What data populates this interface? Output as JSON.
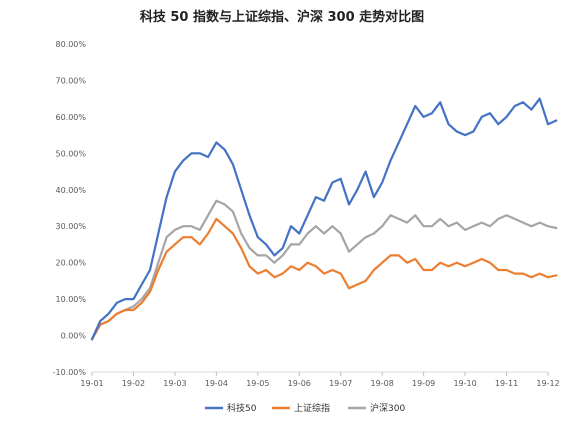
{
  "chart_data": {
    "type": "line",
    "title": "科技 50 指数与上证综指、沪深 300 走势对比图",
    "xlabel": "",
    "ylabel": "",
    "x_ticks": [
      "19-01",
      "19-02",
      "19-03",
      "19-04",
      "19-05",
      "19-06",
      "19-07",
      "19-08",
      "19-09",
      "19-10",
      "19-11",
      "19-12"
    ],
    "y_ticks": [
      "80.00%",
      "70.00%",
      "60.00%",
      "50.00%",
      "40.00%",
      "30.00%",
      "20.00%",
      "10.00%",
      "0.00%",
      "-10.00%"
    ],
    "ylim": [
      -10,
      80
    ],
    "grid": false,
    "legend_position": "bottom",
    "x": [
      0,
      0.2,
      0.4,
      0.6,
      0.8,
      1,
      1.2,
      1.4,
      1.6,
      1.8,
      2,
      2.2,
      2.4,
      2.6,
      2.8,
      3,
      3.2,
      3.4,
      3.6,
      3.8,
      4,
      4.2,
      4.4,
      4.6,
      4.8,
      5,
      5.2,
      5.4,
      5.6,
      5.8,
      6,
      6.2,
      6.4,
      6.6,
      6.8,
      7,
      7.2,
      7.4,
      7.6,
      7.8,
      8,
      8.2,
      8.4,
      8.6,
      8.8,
      9,
      9.2,
      9.4,
      9.6,
      9.8,
      10,
      10.2,
      10.4,
      10.6,
      10.8,
      11,
      11.2
    ],
    "series": [
      {
        "name": "科技50",
        "color": "#4472C4",
        "values": [
          -1,
          4,
          6,
          9,
          10,
          10,
          14,
          18,
          28,
          38,
          45,
          48,
          50,
          50,
          49,
          53,
          51,
          47,
          40,
          33,
          27,
          25,
          22,
          24,
          30,
          28,
          33,
          38,
          37,
          42,
          43,
          36,
          40,
          45,
          38,
          42,
          48,
          53,
          58,
          63,
          60,
          61,
          64,
          58,
          56,
          55,
          56,
          60,
          61,
          58,
          60,
          63,
          64,
          62,
          65,
          58,
          59
        ]
      },
      {
        "name": "上证综指",
        "color": "#ED7D31",
        "values": [
          -1,
          3,
          4,
          6,
          7,
          7,
          9,
          12,
          18,
          23,
          25,
          27,
          27,
          25,
          28,
          32,
          30,
          28,
          24,
          19,
          17,
          18,
          16,
          17,
          19,
          18,
          20,
          19,
          17,
          18,
          17,
          13,
          14,
          15,
          18,
          20,
          22,
          22,
          20,
          21,
          18,
          18,
          20,
          19,
          20,
          19,
          20,
          21,
          20,
          18,
          18,
          17,
          17,
          16,
          17,
          16,
          16.5
        ]
      },
      {
        "name": "沪深300",
        "color": "#A5A5A5",
        "values": [
          -1,
          3,
          4,
          6,
          7,
          8,
          10,
          13,
          20,
          27,
          29,
          30,
          30,
          29,
          33,
          37,
          36,
          34,
          28,
          24,
          22,
          22,
          20,
          22,
          25,
          25,
          28,
          30,
          28,
          30,
          28,
          23,
          25,
          27,
          28,
          30,
          33,
          32,
          31,
          33,
          30,
          30,
          32,
          30,
          31,
          29,
          30,
          31,
          30,
          32,
          33,
          32,
          31,
          30,
          31,
          30,
          29.5
        ]
      }
    ]
  }
}
